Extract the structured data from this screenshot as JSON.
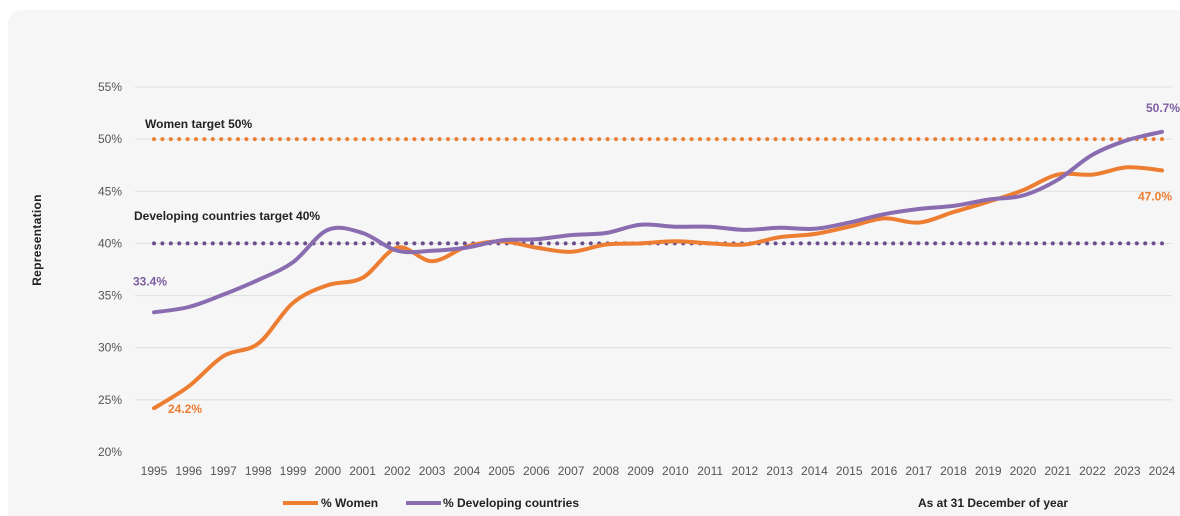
{
  "chart_data": {
    "type": "line",
    "title": "",
    "ylabel": "Representation",
    "xlabel": "",
    "ylim": [
      20,
      55
    ],
    "yticks": [
      20,
      25,
      30,
      35,
      40,
      45,
      50,
      55
    ],
    "ytick_labels": [
      "20%",
      "25%",
      "30%",
      "35%",
      "40%",
      "45%",
      "50%",
      "55%"
    ],
    "grid": true,
    "x": [
      1995,
      1996,
      1997,
      1998,
      1999,
      2000,
      2001,
      2002,
      2003,
      2004,
      2005,
      2006,
      2007,
      2008,
      2009,
      2010,
      2011,
      2012,
      2013,
      2014,
      2015,
      2016,
      2017,
      2018,
      2019,
      2020,
      2021,
      2022,
      2023,
      2024
    ],
    "series": [
      {
        "name": "% Women",
        "color": "#ed7d31",
        "values": [
          24.2,
          26.3,
          29.2,
          30.4,
          34.3,
          36.0,
          36.7,
          39.6,
          38.3,
          39.7,
          40.2,
          39.6,
          39.2,
          39.9,
          40.0,
          40.2,
          40.0,
          39.9,
          40.6,
          40.9,
          41.6,
          42.4,
          42.0,
          43.0,
          44.0,
          45.1,
          46.6,
          46.6,
          47.3,
          47.0
        ],
        "first_label": "24.2%",
        "last_label": "47.0%"
      },
      {
        "name": "% Developing countries",
        "color": "#7e5ea1",
        "values": [
          33.4,
          33.9,
          35.1,
          36.5,
          38.2,
          41.3,
          41.0,
          39.3,
          39.3,
          39.6,
          40.3,
          40.4,
          40.8,
          41.0,
          41.8,
          41.6,
          41.6,
          41.3,
          41.5,
          41.4,
          42.0,
          42.8,
          43.3,
          43.6,
          44.2,
          44.6,
          46.1,
          48.5,
          49.9,
          50.7
        ],
        "first_label": "33.4%",
        "last_label": "50.7%"
      }
    ],
    "targets": [
      {
        "label": "Women target 50%",
        "value": 50,
        "color": "#ed7d31"
      },
      {
        "label": "Developing countries target 40%",
        "value": 40,
        "color": "#6a4f8c"
      }
    ],
    "legend": [
      "% Women",
      "% Developing countries"
    ],
    "legend_position": "bottom",
    "note": "As at 31 December of year"
  }
}
